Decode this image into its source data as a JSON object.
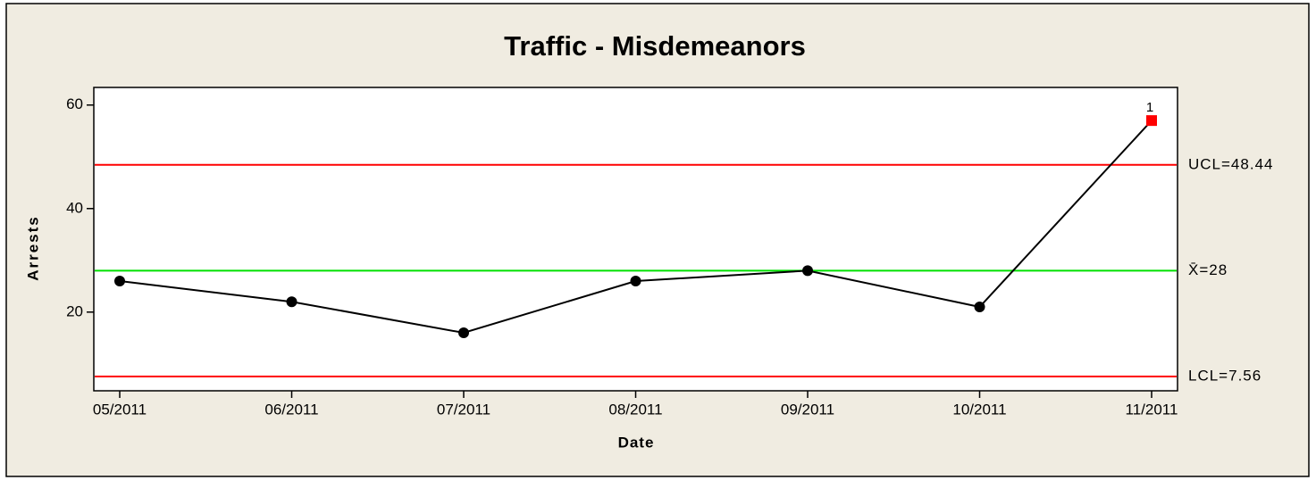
{
  "chart_data": {
    "type": "control",
    "title": "Traffic - Misdemeanors",
    "x_label": "Date",
    "y_label": "Arrests",
    "categories": [
      "05/2011",
      "06/2011",
      "07/2011",
      "08/2011",
      "09/2011",
      "10/2011",
      "11/2011"
    ],
    "values": [
      26,
      22,
      16,
      26,
      28,
      21,
      57
    ],
    "flags": [
      null,
      null,
      null,
      null,
      null,
      null,
      "1"
    ],
    "color": "#000000",
    "flag_color": "#ff0000",
    "limits": [
      {
        "value": 48.44,
        "label": "UCL=48.44",
        "color": "#ff0000"
      },
      {
        "value": 28,
        "label": "X̄=28",
        "color": "#00e000"
      },
      {
        "value": 7.56,
        "label": "LCL=7.56",
        "color": "#ff0000"
      }
    ],
    "ylim": [
      4.8,
      63.4
    ],
    "yticks": [
      20,
      40,
      60
    ]
  }
}
